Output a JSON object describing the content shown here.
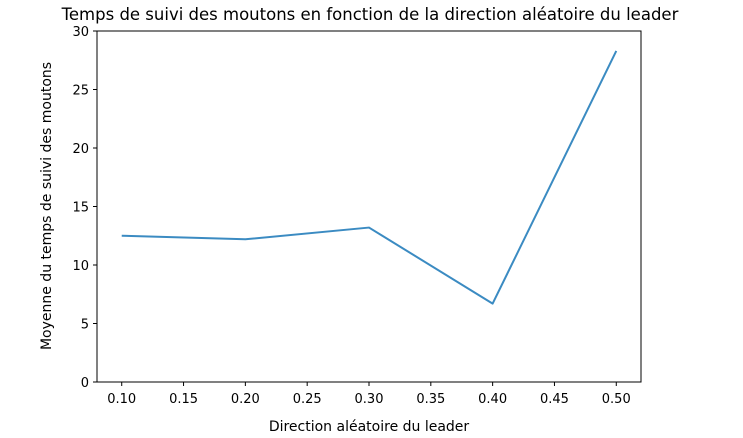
{
  "chart_data": {
    "type": "line",
    "title": "Temps de suivi des moutons en fonction de la direction aléatoire du leader",
    "xlabel": "Direction aléatoire du leader",
    "ylabel": "Moyenne du temps de suivi des moutons",
    "x": [
      0.1,
      0.2,
      0.3,
      0.4,
      0.5
    ],
    "series": [
      {
        "values": [
          12.5,
          12.2,
          13.2,
          6.7,
          28.3
        ]
      }
    ],
    "xlim": [
      0.08,
      0.52
    ],
    "ylim": [
      0,
      30
    ],
    "xticks": [
      0.1,
      0.15,
      0.2,
      0.25,
      0.3,
      0.35,
      0.4,
      0.45,
      0.5
    ],
    "xtick_labels": [
      "0.10",
      "0.15",
      "0.20",
      "0.25",
      "0.30",
      "0.35",
      "0.40",
      "0.45",
      "0.50"
    ],
    "yticks": [
      0,
      5,
      10,
      15,
      20,
      25,
      30
    ],
    "ytick_labels": [
      "0",
      "5",
      "10",
      "15",
      "20",
      "25",
      "30"
    ],
    "line_color": "#3b8bc2",
    "grid": false,
    "legend": false
  }
}
